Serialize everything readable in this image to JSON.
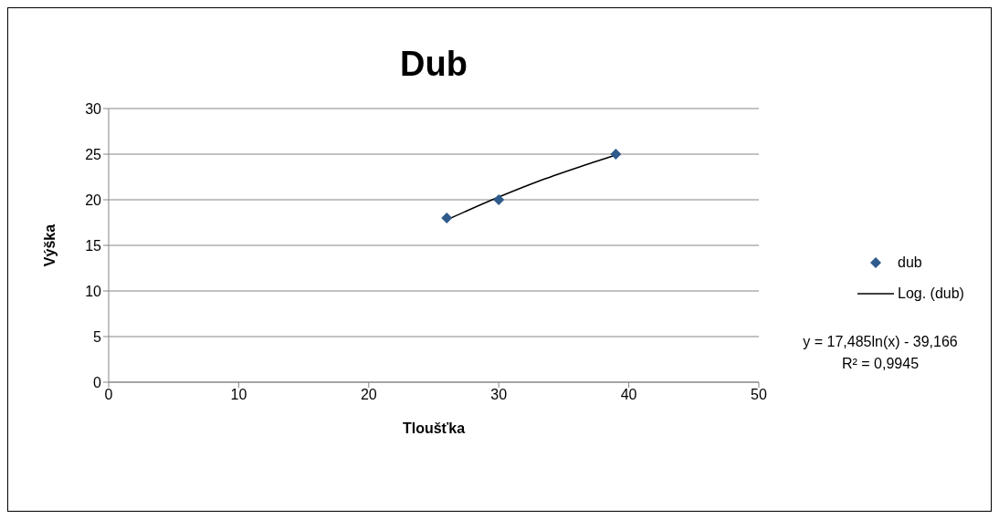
{
  "chart_data": {
    "type": "scatter",
    "title": "Dub",
    "xlabel": "Tloušťka",
    "ylabel": "Výška",
    "series": [
      {
        "name": "dub",
        "color": "#2e5a8c",
        "marker": "diamond",
        "x": [
          26,
          30,
          39
        ],
        "values": [
          18,
          20,
          25
        ]
      },
      {
        "name": "Log. (dub)",
        "type": "line",
        "color": "#000000",
        "marker": "none",
        "x": [
          26,
          30,
          33,
          36,
          39
        ],
        "values": [
          17.8,
          20.3,
          22.0,
          23.5,
          24.9
        ]
      }
    ],
    "xlim": [
      0,
      50
    ],
    "xticks": [
      0,
      10,
      20,
      30,
      40,
      50
    ],
    "ylim": [
      0,
      30
    ],
    "yticks": [
      0,
      5,
      10,
      15,
      20,
      25,
      30
    ],
    "grid": "y",
    "legend": "right",
    "annotations": [
      "y = 17,485ln(x) - 39,166",
      "R² = 0,9945"
    ]
  }
}
